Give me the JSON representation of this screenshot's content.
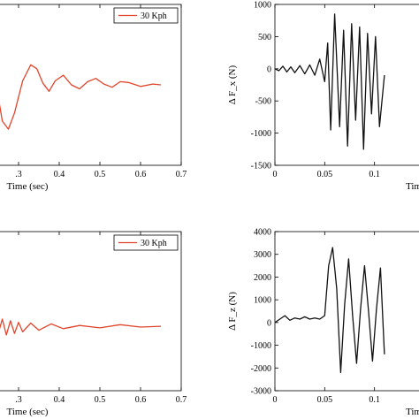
{
  "colors": {
    "red": "#e0452b",
    "black": "#111111",
    "axis": "#000000"
  },
  "chart_data": [
    {
      "id": "top-left",
      "type": "line",
      "xlabel": "Time (sec)",
      "ylabel": "",
      "xlim": [
        0.25,
        0.7
      ],
      "ylim": [
        -1,
        1
      ],
      "xticks": [
        0.3,
        0.4,
        0.5,
        0.6,
        0.7
      ],
      "xtick_labels": [
        ".3",
        "0.4",
        "0.5",
        "0.6",
        "0.7"
      ],
      "yticks": [],
      "legend": {
        "label": "30 Kph",
        "placement": "top-right"
      },
      "series": [
        {
          "name": "30 Kph",
          "color": "red",
          "points": [
            [
              0.25,
              -0.15
            ],
            [
              0.26,
              -0.45
            ],
            [
              0.275,
              -0.55
            ],
            [
              0.29,
              -0.35
            ],
            [
              0.31,
              0.05
            ],
            [
              0.33,
              0.25
            ],
            [
              0.345,
              0.2
            ],
            [
              0.36,
              0.02
            ],
            [
              0.375,
              -0.08
            ],
            [
              0.39,
              0.05
            ],
            [
              0.41,
              0.12
            ],
            [
              0.43,
              0.0
            ],
            [
              0.45,
              -0.05
            ],
            [
              0.47,
              0.04
            ],
            [
              0.49,
              0.08
            ],
            [
              0.51,
              0.01
            ],
            [
              0.53,
              -0.03
            ],
            [
              0.55,
              0.04
            ],
            [
              0.57,
              0.03
            ],
            [
              0.6,
              -0.02
            ],
            [
              0.63,
              0.01
            ],
            [
              0.65,
              0.0
            ]
          ]
        }
      ]
    },
    {
      "id": "top-right",
      "type": "line",
      "xlabel": "Tim",
      "ylabel": "Δ F_x (N)",
      "xlim": [
        0,
        0.15
      ],
      "ylim": [
        -1500,
        1000
      ],
      "xticks": [
        0,
        0.05,
        0.1
      ],
      "xtick_labels": [
        "0",
        "0.05",
        "0.1"
      ],
      "yticks": [
        -1500,
        -1000,
        -500,
        0,
        500,
        1000
      ],
      "ytick_labels": [
        "-1500",
        "-1000",
        "-500",
        "0",
        "500",
        "1000"
      ],
      "series": [
        {
          "name": "",
          "color": "black",
          "points": [
            [
              0,
              0
            ],
            [
              0.004,
              -30
            ],
            [
              0.008,
              40
            ],
            [
              0.012,
              -50
            ],
            [
              0.016,
              30
            ],
            [
              0.02,
              -60
            ],
            [
              0.025,
              50
            ],
            [
              0.03,
              -80
            ],
            [
              0.035,
              60
            ],
            [
              0.04,
              -100
            ],
            [
              0.045,
              150
            ],
            [
              0.05,
              -200
            ],
            [
              0.053,
              400
            ],
            [
              0.056,
              -950
            ],
            [
              0.06,
              850
            ],
            [
              0.065,
              -900
            ],
            [
              0.069,
              600
            ],
            [
              0.073,
              -1200
            ],
            [
              0.077,
              700
            ],
            [
              0.081,
              -800
            ],
            [
              0.085,
              650
            ],
            [
              0.089,
              -1250
            ],
            [
              0.093,
              550
            ],
            [
              0.097,
              -700
            ],
            [
              0.101,
              500
            ],
            [
              0.105,
              -900
            ],
            [
              0.11,
              -100
            ]
          ]
        }
      ]
    },
    {
      "id": "bottom-left",
      "type": "line",
      "xlabel": "Time (sec)",
      "ylabel": "",
      "xlim": [
        0.25,
        0.7
      ],
      "ylim": [
        -1,
        1
      ],
      "xticks": [
        0.3,
        0.4,
        0.5,
        0.6,
        0.7
      ],
      "xtick_labels": [
        ".3",
        "0.4",
        "0.5",
        "0.6",
        "0.7"
      ],
      "yticks": [],
      "legend": {
        "label": "30 Kph",
        "placement": "top-right"
      },
      "series": [
        {
          "name": "30 Kph",
          "color": "red",
          "points": [
            [
              0.25,
              -0.28
            ],
            [
              0.26,
              -0.1
            ],
            [
              0.27,
              -0.3
            ],
            [
              0.28,
              -0.12
            ],
            [
              0.29,
              -0.28
            ],
            [
              0.3,
              -0.14
            ],
            [
              0.31,
              -0.26
            ],
            [
              0.33,
              -0.15
            ],
            [
              0.35,
              -0.24
            ],
            [
              0.38,
              -0.16
            ],
            [
              0.41,
              -0.22
            ],
            [
              0.45,
              -0.18
            ],
            [
              0.5,
              -0.21
            ],
            [
              0.55,
              -0.17
            ],
            [
              0.6,
              -0.2
            ],
            [
              0.65,
              -0.19
            ]
          ]
        }
      ]
    },
    {
      "id": "bottom-right",
      "type": "line",
      "xlabel": "Tim",
      "ylabel": "Δ F_z (N)",
      "xlim": [
        0,
        0.15
      ],
      "ylim": [
        -3000,
        4000
      ],
      "xticks": [
        0,
        0.05,
        0.1
      ],
      "xtick_labels": [
        "0",
        "0.05",
        "0.1"
      ],
      "yticks": [
        -3000,
        -2000,
        -1000,
        0,
        1000,
        2000,
        3000,
        4000
      ],
      "ytick_labels": [
        "-3000",
        "-2000",
        "-1000",
        "0",
        "1000",
        "2000",
        "3000",
        "4000"
      ],
      "series": [
        {
          "name": "",
          "color": "black",
          "points": [
            [
              0,
              0
            ],
            [
              0.005,
              150
            ],
            [
              0.01,
              300
            ],
            [
              0.015,
              100
            ],
            [
              0.02,
              200
            ],
            [
              0.025,
              150
            ],
            [
              0.03,
              250
            ],
            [
              0.035,
              150
            ],
            [
              0.04,
              200
            ],
            [
              0.045,
              150
            ],
            [
              0.05,
              300
            ],
            [
              0.054,
              2500
            ],
            [
              0.058,
              3300
            ],
            [
              0.062,
              1500
            ],
            [
              0.066,
              -2200
            ],
            [
              0.07,
              800
            ],
            [
              0.074,
              2800
            ],
            [
              0.078,
              300
            ],
            [
              0.082,
              -1800
            ],
            [
              0.086,
              600
            ],
            [
              0.09,
              2500
            ],
            [
              0.094,
              500
            ],
            [
              0.098,
              -1700
            ],
            [
              0.102,
              600
            ],
            [
              0.106,
              2400
            ],
            [
              0.11,
              -1400
            ]
          ]
        }
      ]
    }
  ]
}
